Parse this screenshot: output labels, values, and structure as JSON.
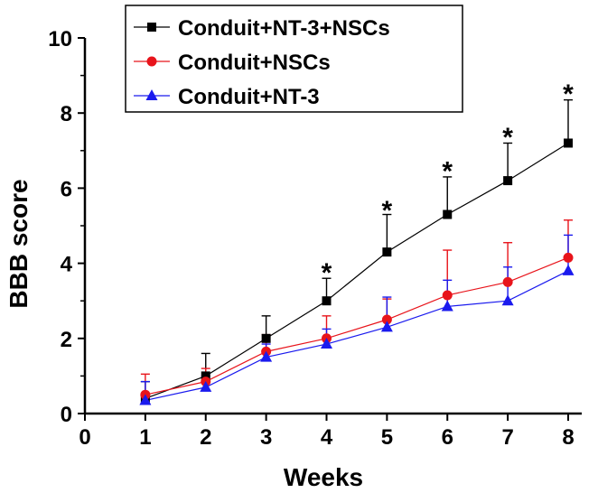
{
  "chart_data": {
    "type": "line",
    "xlabel": "Weeks",
    "ylabel": "BBB score",
    "xlim": [
      0,
      8
    ],
    "ylim": [
      0,
      10
    ],
    "xticks": [
      "0",
      "1",
      "2",
      "3",
      "4",
      "5",
      "6",
      "7",
      "8"
    ],
    "yticks": [
      "0",
      "2",
      "4",
      "6",
      "8",
      "10"
    ],
    "legend_position": "top-left",
    "series": [
      {
        "name": "Conduit+NT-3+NSCs",
        "color": "#000000",
        "marker": "square",
        "x": [
          1,
          2,
          3,
          4,
          5,
          6,
          7,
          8
        ],
        "values": [
          0.4,
          1.0,
          2.0,
          3.0,
          4.3,
          5.3,
          6.2,
          7.2
        ],
        "errors": [
          0.45,
          0.6,
          0.6,
          0.6,
          1.0,
          1.0,
          1.0,
          1.15
        ]
      },
      {
        "name": "Conduit+NSCs",
        "color": "#e8141b",
        "marker": "circle",
        "x": [
          1,
          2,
          3,
          4,
          5,
          6,
          7,
          8
        ],
        "values": [
          0.5,
          0.85,
          1.65,
          2.0,
          2.5,
          3.15,
          3.5,
          4.15
        ],
        "errors": [
          0.55,
          0.35,
          0.45,
          0.6,
          0.55,
          1.2,
          1.05,
          1.0
        ]
      },
      {
        "name": "Conduit+NT-3",
        "color": "#1a1aee",
        "marker": "triangle",
        "x": [
          1,
          2,
          3,
          4,
          5,
          6,
          7,
          8
        ],
        "values": [
          0.35,
          0.7,
          1.5,
          1.85,
          2.3,
          2.85,
          3.0,
          3.8
        ],
        "errors": [
          0.5,
          0.3,
          0.35,
          0.4,
          0.8,
          0.7,
          0.9,
          0.95
        ]
      }
    ],
    "annotations": [
      {
        "x": 4,
        "y": 3.85,
        "text": "*"
      },
      {
        "x": 5,
        "y": 5.5,
        "text": "*"
      },
      {
        "x": 6,
        "y": 6.55,
        "text": "*"
      },
      {
        "x": 7,
        "y": 7.45,
        "text": "*"
      },
      {
        "x": 8,
        "y": 8.6,
        "text": "*"
      }
    ]
  }
}
